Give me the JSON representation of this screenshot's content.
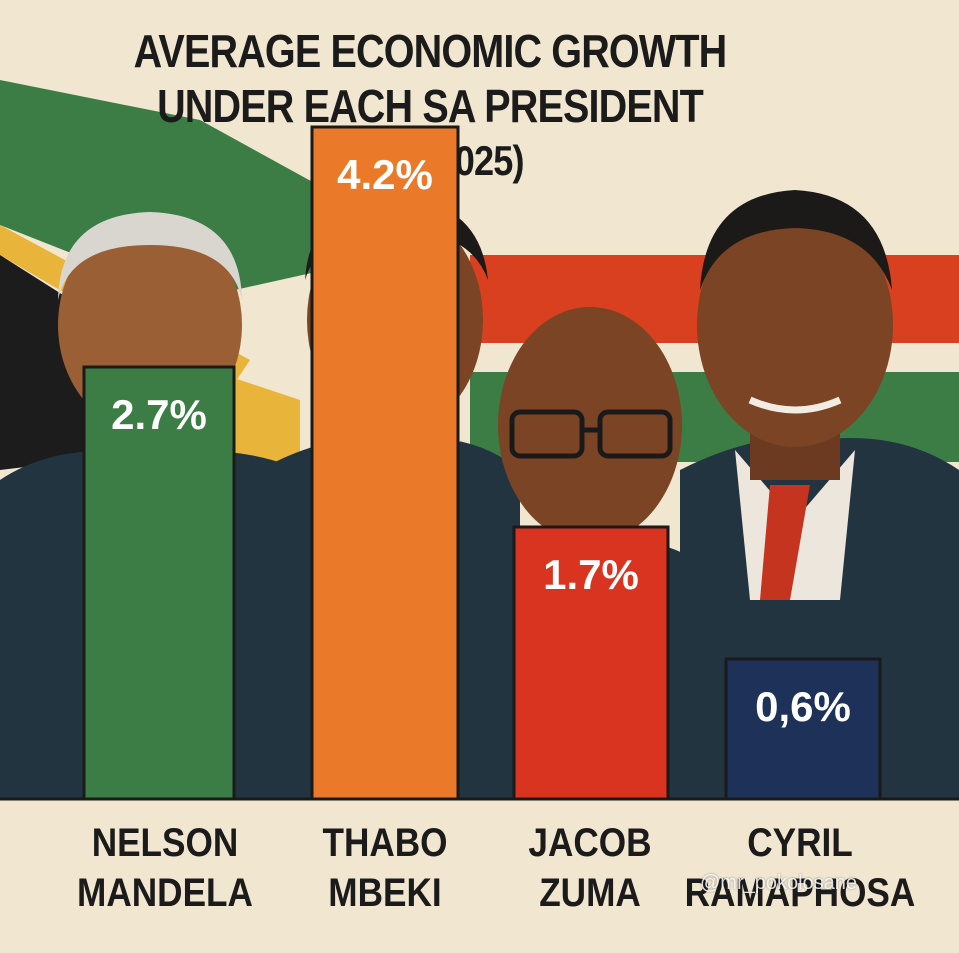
{
  "title_lines": [
    "AVERAGE ECONOMIC GROWTH",
    "UNDER EACH SA PRESIDENT",
    "(1994-2025)"
  ],
  "watermark": "@mr_pokolosane",
  "colors": {
    "background": "#f1e6cf",
    "green": "#3c7d46",
    "orange": "#ea7a2a",
    "red": "#d8341f",
    "navy": "#1d3159",
    "suit": "#22343f"
  },
  "chart_data": {
    "type": "bar",
    "title": "AVERAGE ECONOMIC GROWTH UNDER EACH SA PRESIDENT (1994-2025)",
    "categories": [
      "NELSON MANDELA",
      "THABO MBEKI",
      "JACOB ZUMA",
      "CYRIL RAMAPHOSA"
    ],
    "category_lines": [
      [
        "NELSON",
        "MANDELA"
      ],
      [
        "THABO",
        "MBEKI"
      ],
      [
        "JACOB",
        "ZUMA"
      ],
      [
        "CYRIL",
        "RAMAPHOSA"
      ]
    ],
    "values": [
      2.7,
      4.2,
      1.7,
      0.6
    ],
    "value_labels": [
      "2.7%",
      "4.2%",
      "1.7%",
      "0,6%"
    ],
    "bar_colors": [
      "#3c7d46",
      "#ea7a2a",
      "#d8341f",
      "#1d3159"
    ],
    "xlabel": "",
    "ylabel": "",
    "grid": false,
    "legend": "none"
  }
}
